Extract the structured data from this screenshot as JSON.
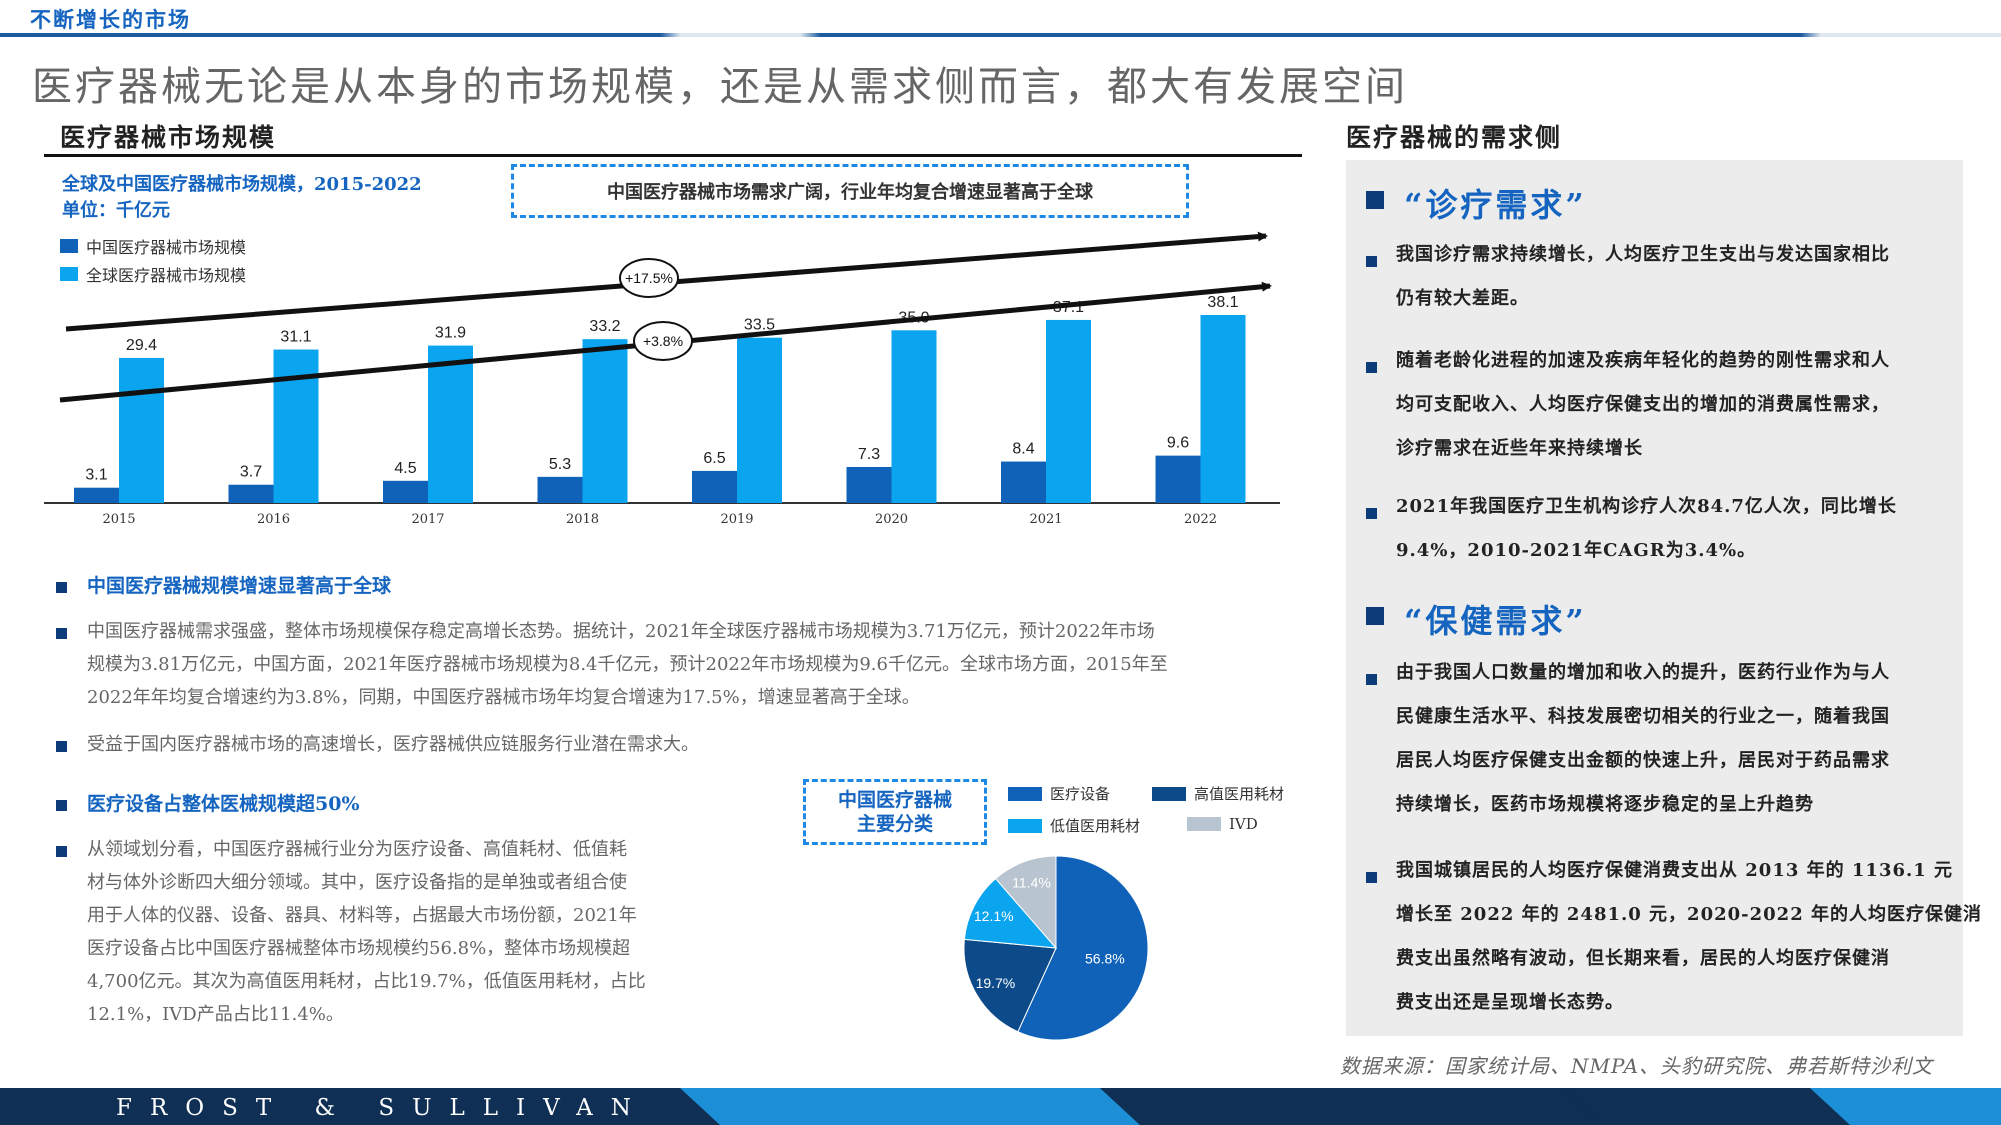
{
  "header": {
    "section_label": "不断增长的市场",
    "main_title": "医疗器械无论是从本身的市场规模，还是从需求侧而言，都大有发展空间"
  },
  "left": {
    "heading": "医疗器械市场规模",
    "chart_title": "全球及中国医疗器械市场规模，2015-2022",
    "chart_unit": "单位：千亿元",
    "callout": "中国医疗器械市场需求广阔，行业年均复合增速显著高于全球",
    "bullets": [
      {
        "type": "head",
        "text": "中国医疗器械规模增速显著高于全球"
      },
      {
        "type": "text",
        "lines": [
          "中国医疗器械需求强盛，整体市场规模保存稳定高增长态势。据统计，2021年全球医疗器械市场规模为3.71万亿元，预计2022年市场",
          "规模为3.81万亿元，中国方面，2021年医疗器械市场规模为8.4千亿元，预计2022年市场规模为9.6千亿元。全球市场方面，2015年至",
          "2022年年均复合增速约为3.8%，同期，中国医疗器械市场年均复合增速为17.5%，增速显著高于全球。"
        ]
      },
      {
        "type": "text",
        "lines": [
          "受益于国内医疗器械市场的高速增长，医疗器械供应链服务行业潜在需求大。"
        ]
      },
      {
        "type": "head",
        "text": "医疗设备占整体医械规模超50%"
      },
      {
        "type": "text",
        "lines": [
          "从领域划分看，中国医疗器械行业分为医疗设备、高值耗材、低值耗",
          "材与体外诊断四大细分领域。其中，医疗设备指的是单独或者组合使",
          "用于人体的仪器、设备、器具、材料等，占据最大市场份额，2021年",
          "医疗设备占比中国医疗器械整体市场规模约56.8%，整体市场规模超",
          "4,700亿元。其次为高值医用耗材，占比19.7%，低值医用耗材，占比",
          "12.1%，IVD产品占比11.4%。"
        ]
      }
    ],
    "pie_box": [
      "中国医疗器械",
      "主要分类"
    ]
  },
  "right": {
    "heading": "医疗器械的需求侧",
    "sections": [
      {
        "title": "“诊疗需求”",
        "items": [
          [
            "我国诊疗需求持续增长，人均医疗卫生支出与发达国家相比",
            "仍有较大差距。"
          ],
          [
            "随着老龄化进程的加速及疾病年轻化的趋势的刚性需求和人",
            "均可支配收入、人均医疗保健支出的增加的消费属性需求，",
            "诊疗需求在近些年来持续增长"
          ],
          [
            "2021年我国医疗卫生机构诊疗人次84.7亿人次，同比增长",
            "9.4%，2010-2021年CAGR为3.4%。"
          ]
        ]
      },
      {
        "title": "“保健需求”",
        "items": [
          [
            "由于我国人口数量的增加和收入的提升，医药行业作为与人",
            "民健康生活水平、科技发展密切相关的行业之一，随着我国",
            "居民人均医疗保健支出金额的快速上升，居民对于药品需求",
            "持续增长，医药市场规模将逐步稳定的呈上升趋势"
          ],
          [
            "我国城镇居民的人均医疗保健消费支出从 2013 年的 1136.1 元",
            "增长至 2022 年的 2481.0 元，2020-2022 年的人均医疗保健消",
            "费支出虽然略有波动，但长期来看，居民的人均医疗保健消",
            "费支出还是呈现增长态势。"
          ]
        ]
      }
    ]
  },
  "source": "数据来源：国家统计局、NMPA、头豹研究院、弗若斯特沙利文",
  "footer": {
    "logo": "FROST & SULLIVAN"
  },
  "colors": {
    "china": "#0f62b8",
    "global": "#0aa4ef",
    "accent": "#1565c0",
    "navy": "#0f2f55"
  },
  "chart_data": [
    {
      "type": "bar",
      "categories": [
        "2015",
        "2016",
        "2017",
        "2018",
        "2019",
        "2020",
        "2021",
        "2022"
      ],
      "series": [
        {
          "name": "中国医疗器械市场规模",
          "values": [
            3.1,
            3.7,
            4.5,
            5.3,
            6.5,
            7.3,
            8.4,
            9.6
          ],
          "color": "#0f62b8"
        },
        {
          "name": "全球医疗器械市场规模",
          "values": [
            29.4,
            31.1,
            31.9,
            33.2,
            33.5,
            35.0,
            37.1,
            38.1
          ],
          "color": "#0aa4ef"
        }
      ],
      "annotations": [
        "+17.5%",
        "+3.8%"
      ],
      "ylim": [
        0,
        40
      ]
    },
    {
      "type": "pie",
      "labels": [
        "医疗设备",
        "高值医用耗材",
        "低值医用耗材",
        "IVD"
      ],
      "values": [
        56.8,
        19.7,
        12.1,
        11.4
      ],
      "value_labels": [
        "56.8%",
        "19.7%",
        "12.1%",
        "11.4%"
      ],
      "colors": [
        "#0f62b8",
        "#0d4a8a",
        "#0aa4ef",
        "#b8c4cf"
      ]
    }
  ]
}
